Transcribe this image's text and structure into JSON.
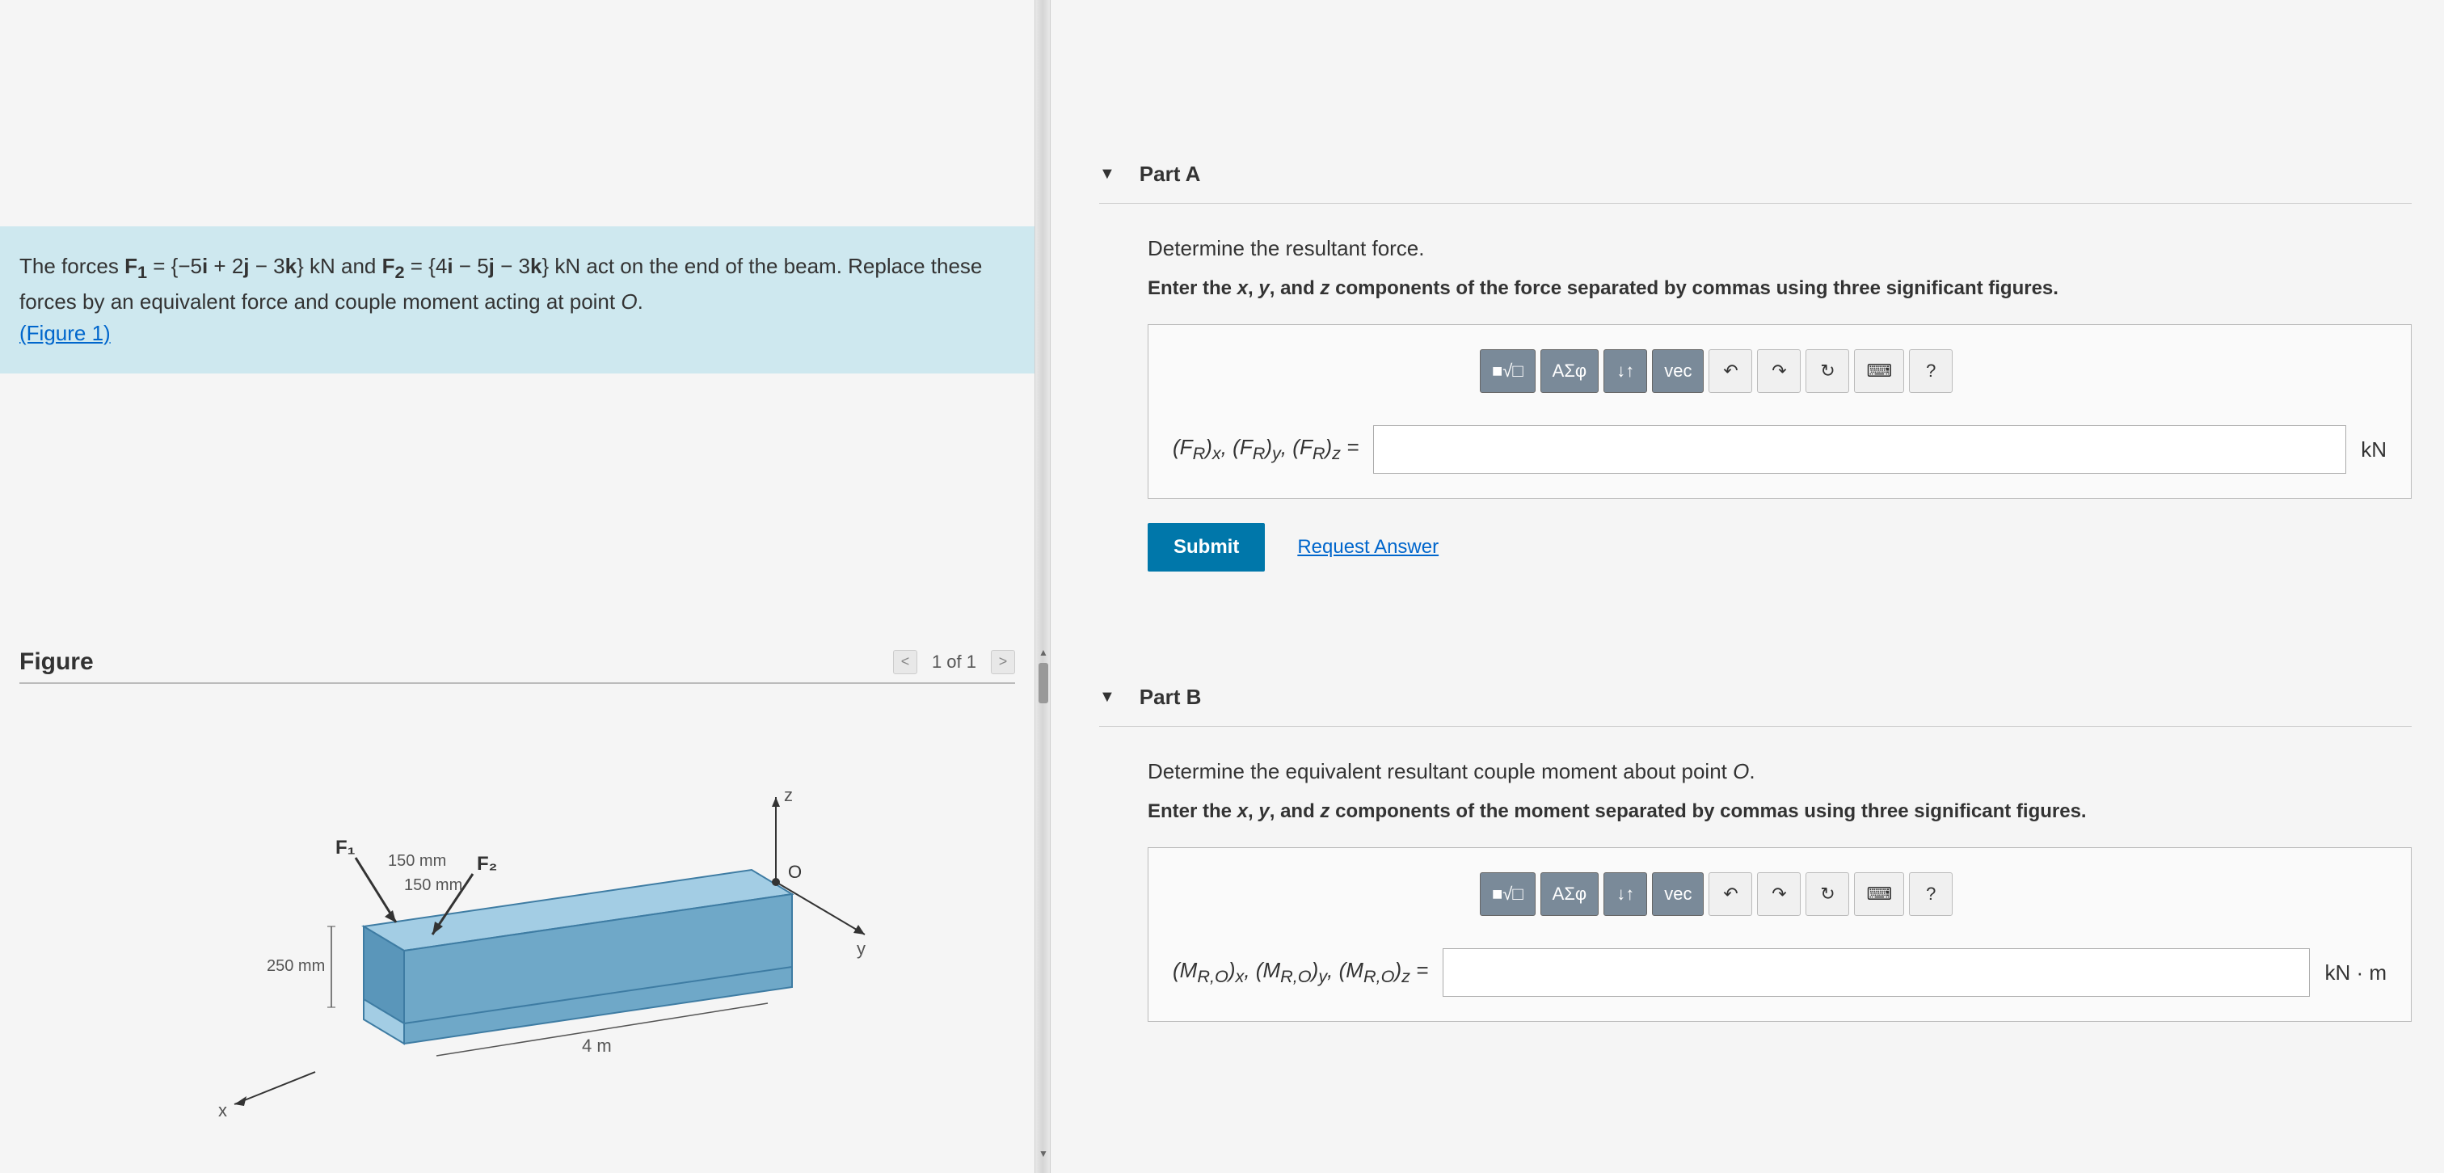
{
  "problem": {
    "text_html": "The forces <b>F<sub>1</sub></b> = {−5<b>i</b> + 2<b>j</b> − 3<b>k</b>} kN and <b>F<sub>2</sub></b> = {4<b>i</b> − 5<b>j</b> − 3<b>k</b>} kN act on the end of the beam. Replace these forces by an equivalent force and couple moment acting at point <i>O</i>.",
    "figure_link": "(Figure 1)"
  },
  "figure": {
    "title": "Figure",
    "nav_label": "1 of 1",
    "labels": {
      "f1": "F₁",
      "f2": "F₂",
      "d1": "150 mm",
      "d2": "150 mm",
      "d3": "250 mm",
      "length": "4 m",
      "origin": "O",
      "x": "x",
      "y": "y",
      "z": "z"
    },
    "colors": {
      "beam_top": "#a3cde4",
      "beam_side": "#6fa8c8",
      "beam_edge": "#3e7ca3",
      "arrow": "#333333",
      "text": "#555555"
    }
  },
  "part_a": {
    "header": "Part A",
    "prompt": "Determine the resultant force.",
    "instruction": "Enter the x, y, and z components of the force separated by commas using three significant figures.",
    "input_label_html": "(<i>F<sub>R</sub></i>)<sub>x</sub>, (<i>F<sub>R</sub></i>)<sub>y</sub>, (<i>F<sub>R</sub></i>)<sub>z</sub> =",
    "input_value": "",
    "unit": "kN",
    "submit": "Submit",
    "request": "Request Answer"
  },
  "part_b": {
    "header": "Part B",
    "prompt": "Determine the equivalent resultant couple moment about point O.",
    "instruction": "Enter the x, y, and z components of the moment separated by commas using three significant figures.",
    "input_label_html": "(<i>M<sub>R,O</sub></i>)<sub>x</sub>, (<i>M<sub>R,O</sub></i>)<sub>y</sub>, (<i>M<sub>R,O</sub></i>)<sub>z</sub> =",
    "input_value": "",
    "unit": "kN · m"
  },
  "toolbar": {
    "templates": "■√□",
    "greek": "ΑΣφ",
    "subscript": "↓↑",
    "vec": "vec",
    "undo": "↶",
    "redo": "↷",
    "reset": "↻",
    "keyboard": "⌨",
    "help": "?"
  }
}
